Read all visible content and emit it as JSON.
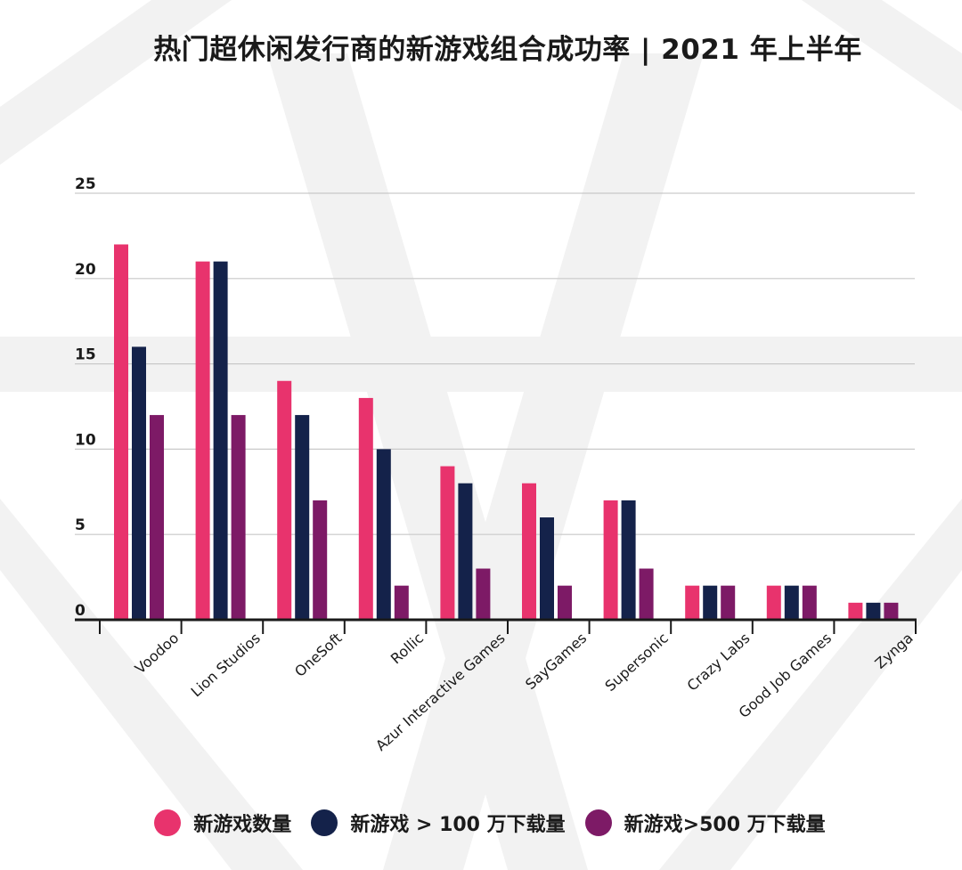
{
  "chart_data": {
    "type": "bar",
    "title": "热门超休闲发行商的新游戏组合成功率 | 2021 年上半年",
    "xlabel": "",
    "ylabel": "",
    "ylim": [
      0,
      25
    ],
    "yticks": [
      0,
      5,
      10,
      15,
      20,
      25
    ],
    "grid": true,
    "legend_position": "bottom",
    "categories": [
      "Voodoo",
      "Lion Studios",
      "OneSoft",
      "Rollic",
      "Azur Interactive Games",
      "SayGames",
      "Supersonic",
      "Crazy Labs",
      "Good Job Games",
      "Zynga"
    ],
    "series": [
      {
        "name": "新游戏数量",
        "color": "#e8336d",
        "values": [
          22,
          21,
          14,
          13,
          9,
          8,
          7,
          2,
          2,
          1
        ]
      },
      {
        "name": "新游戏 > 100 万下载量",
        "color": "#14224a",
        "values": [
          16,
          21,
          12,
          10,
          8,
          6,
          7,
          2,
          2,
          1
        ]
      },
      {
        "name": "新游戏>500 万下载量",
        "color": "#7d1a66",
        "values": [
          12,
          12,
          7,
          2,
          3,
          2,
          3,
          2,
          2,
          1
        ]
      }
    ]
  }
}
